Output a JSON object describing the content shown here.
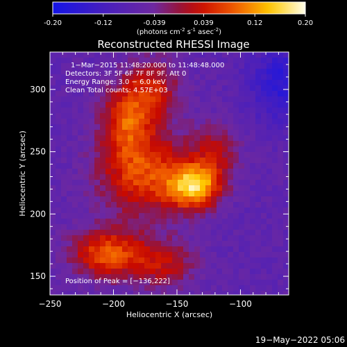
{
  "colorbar": {
    "tick_labels": [
      "-0.20",
      "-0.12",
      "-0.039",
      "0.039",
      "0.12",
      "0.20"
    ],
    "tick_values": [
      -0.2,
      -0.12,
      -0.039,
      0.039,
      0.12,
      0.2
    ],
    "range": [
      -0.2,
      0.2
    ],
    "units_prefix": "(photons cm",
    "units_exp1": "-2",
    "units_mid": " s",
    "units_exp2": "-1",
    "units_suffix": " asec",
    "units_exp3": "-2",
    "units_close": ")"
  },
  "chart_data": {
    "type": "heatmap",
    "title": "Reconstructed RHESSI Image",
    "xlabel": "Heliocentric X (arcsec)",
    "ylabel": "Heliocentric Y (arcsec)",
    "xlim": [
      -250,
      -62
    ],
    "ylim": [
      135,
      330
    ],
    "x_ticks": [
      -250,
      -200,
      -150,
      -100
    ],
    "y_ticks": [
      150,
      200,
      250,
      300
    ],
    "x_tick_labels": [
      "−250",
      "−200",
      "−150",
      "−100"
    ],
    "y_tick_labels": [
      "150",
      "200",
      "250",
      "300"
    ],
    "peak": [
      -136,
      222
    ],
    "peak_label": "Position of Peak = [−136,222]",
    "info_lines": [
      "1−Mar−2015 11:48:20.000 to 11:48:48.000",
      "Detectors: 3F 5F 6F 7F 8F 9F, Att 0",
      "Energy Range: 3.0 − 6.0 keV",
      "Clean     Total counts: 4.57E+03"
    ],
    "sources": [
      {
        "x": -136,
        "y": 222,
        "peak": 0.2,
        "sx": 14,
        "sy": 12
      },
      {
        "x": -175,
        "y": 232,
        "peak": 0.14,
        "sx": 26,
        "sy": 24
      },
      {
        "x": -190,
        "y": 275,
        "peak": 0.12,
        "sx": 14,
        "sy": 20
      },
      {
        "x": -170,
        "y": 300,
        "peak": 0.1,
        "sx": 16,
        "sy": 18
      },
      {
        "x": -205,
        "y": 168,
        "peak": 0.15,
        "sx": 20,
        "sy": 14
      },
      {
        "x": -160,
        "y": 160,
        "peak": 0.09,
        "sx": 18,
        "sy": 14
      },
      {
        "x": -120,
        "y": 250,
        "peak": 0.08,
        "sx": 14,
        "sy": 16
      }
    ]
  },
  "footer": {
    "timestamp": "19−May−2022 05:06"
  }
}
